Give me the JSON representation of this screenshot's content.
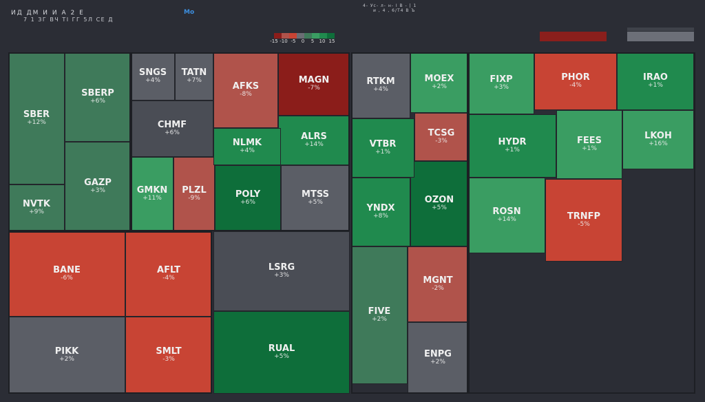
{
  "header": {
    "title_line1": "ИД ДМ И И А 2 Е",
    "title_line2": "7 1 ЗГ ВЧ ТІ ГГ 5Л СЕ Д",
    "accent_label": "Мо",
    "center_line1": "4- Ус-  л-  н-  I  В -  | 1",
    "center_line2": "и ,  4  ,  6/Т4  В  Ъ  "
  },
  "legend": {
    "colors": [
      "#8b1d1a",
      "#b0534b",
      "#c84434",
      "#6a6d74",
      "#3f7a5a",
      "#3a9d62",
      "#208a4e",
      "#0e6e3a"
    ],
    "labels": [
      "-15",
      "-10",
      "-5",
      "0",
      "5",
      "10",
      "15"
    ]
  },
  "controls": {
    "filter_bar_label": "",
    "toggle_label": ""
  },
  "tiles": [
    {
      "ticker": "SBER",
      "change": "+12%",
      "color": "g0"
    },
    {
      "ticker": "SBERP",
      "change": "+6%",
      "color": "g0"
    },
    {
      "ticker": "GAZP",
      "change": "+3%",
      "color": "g0"
    },
    {
      "ticker": "NVTK",
      "change": "+9%",
      "color": "g0"
    },
    {
      "ticker": "SNGS",
      "change": "+4%",
      "color": "n"
    },
    {
      "ticker": "TATN",
      "change": "+7%",
      "color": "n"
    },
    {
      "ticker": "AFKS",
      "change": "-8%",
      "color": "r1"
    },
    {
      "ticker": "MAGN",
      "change": "-7%",
      "color": "r3"
    },
    {
      "ticker": "CHMF",
      "change": "+6%",
      "color": "n2"
    },
    {
      "ticker": "NLMK",
      "change": "+4%",
      "color": "g2"
    },
    {
      "ticker": "ALRS",
      "change": "+14%",
      "color": "g2"
    },
    {
      "ticker": "GMKN",
      "change": "+11%",
      "color": "g1"
    },
    {
      "ticker": "PLZL",
      "change": "-9%",
      "color": "r1"
    },
    {
      "ticker": "POLY",
      "change": "+6%",
      "color": "g3"
    },
    {
      "ticker": "MTSS",
      "change": "+5%",
      "color": "n"
    },
    {
      "ticker": "RTKM",
      "change": "+4%",
      "color": "n"
    },
    {
      "ticker": "MOEX",
      "change": "+2%",
      "color": "g1"
    },
    {
      "ticker": "VTBR",
      "change": "+1%",
      "color": "g2"
    },
    {
      "ticker": "TCSG",
      "change": "-3%",
      "color": "r1"
    },
    {
      "ticker": "YNDX",
      "change": "+8%",
      "color": "g2"
    },
    {
      "ticker": "OZON",
      "change": "+5%",
      "color": "g3"
    },
    {
      "ticker": "FIVE",
      "change": "+2%",
      "color": "g0"
    },
    {
      "ticker": "MGNT",
      "change": "-2%",
      "color": "r1"
    },
    {
      "ticker": "FIXP",
      "change": "+3%",
      "color": "g1"
    },
    {
      "ticker": "PHOR",
      "change": "-4%",
      "color": "r2"
    },
    {
      "ticker": "IRAO",
      "change": "+1%",
      "color": "g2"
    },
    {
      "ticker": "HYDR",
      "change": "+1%",
      "color": "g2"
    },
    {
      "ticker": "FEES",
      "change": "+1%",
      "color": "g1"
    },
    {
      "ticker": "LKOH",
      "change": "+16%",
      "color": "g1"
    },
    {
      "ticker": "ROSN",
      "change": "+14%",
      "color": "g1"
    },
    {
      "ticker": "TRNFP",
      "change": "-5%",
      "color": "r2"
    },
    {
      "ticker": "BANE",
      "change": "-6%",
      "color": "r2"
    },
    {
      "ticker": "AFLT",
      "change": "-4%",
      "color": "r2"
    },
    {
      "ticker": "PIKK",
      "change": "+2%",
      "color": "n"
    },
    {
      "ticker": "SMLT",
      "change": "-3%",
      "color": "r2"
    },
    {
      "ticker": "LSRG",
      "change": "+3%",
      "color": "n2"
    },
    {
      "ticker": "RUAL",
      "change": "+5%",
      "color": "g3"
    },
    {
      "ticker": "ENPG",
      "change": "+2%",
      "color": "n"
    }
  ]
}
